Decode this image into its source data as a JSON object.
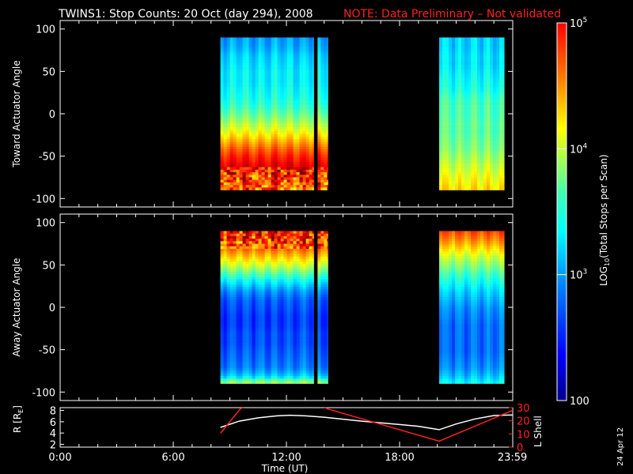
{
  "header": {
    "title": "TWINS1: Stop Counts: 20 Oct (day 294), 2008",
    "note": "NOTE: Data Preliminary – Not validated",
    "note_color": "#ff2020"
  },
  "date_stamp": "24 Apr 12",
  "chart_data": [
    {
      "type": "heatmap",
      "panel": "toward",
      "ylabel": "Toward Actuator Angle",
      "ylim": [
        -110,
        110
      ],
      "yticks": [
        100,
        50,
        0,
        -50,
        -100
      ],
      "xlim": [
        0,
        24
      ],
      "angle_range": [
        -90,
        90
      ],
      "data_blocks": [
        [
          8.5,
          13.45
        ],
        [
          13.65,
          14.2
        ],
        [
          20.1,
          23.55
        ]
      ],
      "intensity_profile": {
        "angles": [
          90,
          80,
          70,
          60,
          50,
          40,
          30,
          20,
          10,
          0,
          -10,
          -20,
          -30,
          -40,
          -50,
          -60,
          -70,
          -80,
          -90
        ],
        "early_log_counts": [
          2.85,
          2.9,
          3.0,
          3.05,
          3.1,
          3.1,
          3.15,
          3.2,
          3.3,
          3.45,
          3.65,
          3.85,
          4.1,
          4.35,
          4.55,
          4.7,
          4.55,
          4.4,
          4.3
        ],
        "late_log_counts": [
          3.0,
          3.0,
          3.05,
          3.05,
          3.1,
          3.15,
          3.2,
          3.3,
          3.35,
          3.35,
          3.4,
          3.4,
          3.45,
          3.5,
          3.6,
          3.7,
          3.8,
          3.9,
          4.0
        ]
      }
    },
    {
      "type": "heatmap",
      "panel": "away",
      "ylabel": "Away Actuator Angle",
      "ylim": [
        -110,
        110
      ],
      "yticks": [
        100,
        50,
        0,
        -50,
        -100
      ],
      "xlim": [
        0,
        24
      ],
      "angle_range": [
        -90,
        90
      ],
      "data_blocks": [
        [
          8.5,
          13.45
        ],
        [
          13.65,
          14.2
        ],
        [
          20.1,
          23.55
        ]
      ],
      "intensity_profile": {
        "angles": [
          90,
          80,
          70,
          60,
          50,
          40,
          30,
          20,
          10,
          0,
          -10,
          -20,
          -30,
          -40,
          -50,
          -60,
          -70,
          -80,
          -90
        ],
        "early_log_counts": [
          4.6,
          4.5,
          4.3,
          4.0,
          3.7,
          3.35,
          3.05,
          2.8,
          2.65,
          2.6,
          2.55,
          2.55,
          2.6,
          2.6,
          2.65,
          2.7,
          2.75,
          3.0,
          3.8
        ],
        "late_log_counts": [
          4.4,
          4.2,
          3.95,
          3.7,
          3.5,
          3.3,
          3.15,
          3.0,
          2.9,
          2.8,
          2.75,
          2.7,
          2.7,
          2.7,
          2.7,
          2.75,
          2.8,
          2.95,
          3.2
        ]
      }
    },
    {
      "type": "line",
      "panel": "orbit",
      "ylabel": "R [R",
      "ylabel_sub": "E",
      "ylabel_end": "]",
      "y2label": "L Shell",
      "ylim": [
        1.5,
        8.5
      ],
      "yticks": [
        8,
        6,
        4,
        2
      ],
      "y2lim": [
        0,
        30
      ],
      "y2ticks": [
        30,
        20,
        10,
        0
      ],
      "xlim": [
        0,
        24
      ],
      "xticks": [
        0,
        6,
        12,
        18,
        23.983
      ],
      "xticklabels": [
        "0:00",
        "6:00",
        "12:00",
        "18:00",
        "23:59"
      ],
      "xlabel": "Time (UT)",
      "series": [
        {
          "color": "#ffffff",
          "x": [
            8.5,
            9.5,
            10.5,
            11.5,
            12.2,
            13,
            14,
            15,
            16,
            17,
            18,
            19,
            20.1,
            21,
            22,
            23,
            24
          ],
          "y": [
            5.0,
            6.1,
            6.7,
            7.05,
            7.15,
            7.05,
            6.8,
            6.45,
            6.1,
            5.8,
            5.5,
            5.2,
            4.6,
            5.6,
            6.5,
            7.1,
            7.2
          ]
        },
        {
          "color": "#ff2020",
          "axis": "right",
          "x": [
            8.5,
            9.55,
            9.8,
            13.9,
            14.2,
            20.1,
            23.5,
            24
          ],
          "y": [
            10.5,
            29,
            31,
            31,
            29,
            4.5,
            25,
            28
          ]
        }
      ]
    },
    {
      "type": "heatmap",
      "panel": "colorbar",
      "label_main": "LOG",
      "label_sub": "10",
      "label_rest": "(Total Stops per Scan)",
      "scale": "log",
      "range": [
        100,
        100000
      ],
      "tick_labels": [
        {
          "main": "10",
          "sup": "5"
        },
        {
          "main": "10",
          "sup": "4"
        },
        {
          "main": "10",
          "sup": "3"
        },
        {
          "main": "100",
          "sup": ""
        }
      ]
    }
  ]
}
